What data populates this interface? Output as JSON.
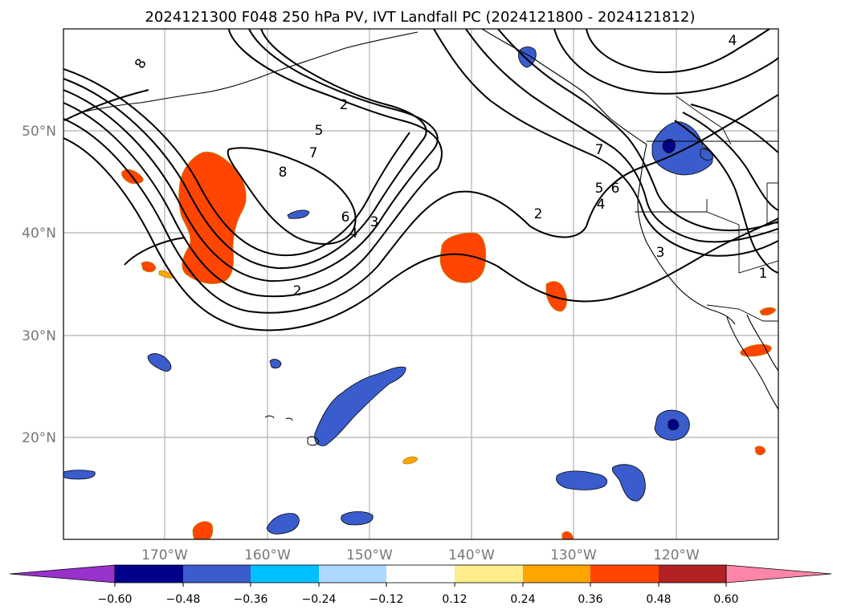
{
  "title": "2024121300 F048 250 hPa PV, IVT Landfall PC (2024121800 - 2024121812)",
  "axes": {
    "lat_labels": [
      "50°N",
      "40°N",
      "30°N",
      "20°N"
    ],
    "lon_labels": [
      "170°W",
      "160°W",
      "150°W",
      "140°W",
      "130°W",
      "120°W"
    ]
  },
  "contour_labels": [
    "8",
    "2",
    "5",
    "7",
    "8",
    "6",
    "4",
    "3",
    "2",
    "2",
    "7",
    "5",
    "6",
    "4",
    "3",
    "4",
    "1"
  ],
  "colorbar": {
    "colors": [
      "#9932cc",
      "#00008b",
      "#3a5ccc",
      "#00bfff",
      "#add8ff",
      "#ffffff",
      "#ffec8b",
      "#ffa500",
      "#ff4500",
      "#b22222",
      "#ff85a8"
    ],
    "tick_labels": [
      "−0.60",
      "−0.48",
      "−0.36",
      "−0.24",
      "−0.12",
      "0.12",
      "0.24",
      "0.36",
      "0.48",
      "0.60"
    ]
  },
  "colors": {
    "frame": "#000000",
    "grid": "#b0b0b0",
    "contour": "#000000",
    "coast": "#000000"
  }
}
